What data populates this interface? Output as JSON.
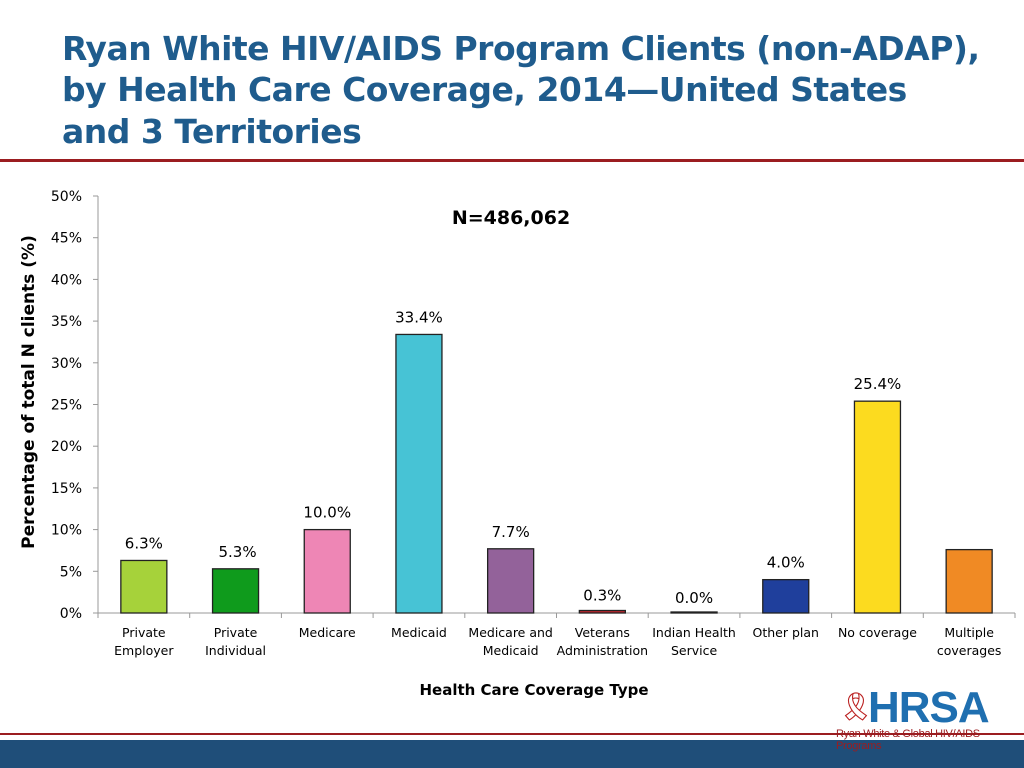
{
  "title": "Ryan White HIV/AIDS Program Clients (non-ADAP), by Health Care Coverage, 2014—United States and 3 Territories",
  "chart_data": {
    "type": "bar",
    "annotation": "N=486,062",
    "xlabel": "Health Care Coverage Type",
    "ylabel": "Percentage of total N clients (%)",
    "ylim": [
      0,
      50
    ],
    "yticks": [
      "0%",
      "5%",
      "10%",
      "15%",
      "20%",
      "25%",
      "30%",
      "35%",
      "40%",
      "45%",
      "50%"
    ],
    "grid": false,
    "categories": [
      [
        "Private",
        "Employer"
      ],
      [
        "Private",
        "Individual"
      ],
      [
        "Medicare"
      ],
      [
        "Medicaid"
      ],
      [
        "Medicare and",
        "Medicaid"
      ],
      [
        "Veterans",
        "Administration"
      ],
      [
        "Indian Health",
        "Service"
      ],
      [
        "Other plan"
      ],
      [
        "No coverage"
      ],
      [
        "Multiple",
        "coverages"
      ]
    ],
    "values": [
      6.3,
      5.3,
      10.0,
      33.4,
      7.7,
      0.3,
      0.0,
      4.0,
      25.4,
      7.6
    ],
    "data_labels": [
      "6.3%",
      "5.3%",
      "10.0%",
      "33.4%",
      "7.7%",
      "0.3%",
      "0.0%",
      "4.0%",
      "25.4%",
      null
    ],
    "colors": [
      "#a6d23a",
      "#0f9b1c",
      "#ee86b5",
      "#47c3d5",
      "#93629a",
      "#c0262d",
      "#cccccc",
      "#1f3f9c",
      "#fcdb1f",
      "#f08a24"
    ]
  },
  "logo": {
    "name": "HRSA",
    "tagline": "Ryan White & Global HIV/AIDS Programs"
  }
}
